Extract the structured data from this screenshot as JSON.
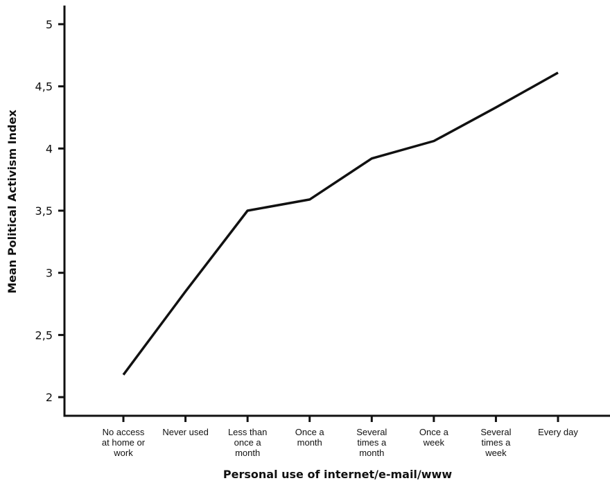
{
  "chart_data": {
    "type": "line",
    "title": "",
    "xlabel": "Personal use of internet/e-mail/www",
    "ylabel": "Mean Political Activism Index",
    "ylim": [
      1.85,
      5.15
    ],
    "yticks": [
      {
        "value": 2,
        "label": "2"
      },
      {
        "value": 2.5,
        "label": "2,5"
      },
      {
        "value": 3,
        "label": "3"
      },
      {
        "value": 3.5,
        "label": "3,5"
      },
      {
        "value": 4,
        "label": "4"
      },
      {
        "value": 4.5,
        "label": "4,5"
      },
      {
        "value": 5,
        "label": "5"
      }
    ],
    "categories": [
      [
        "No access",
        "at home or",
        "work"
      ],
      [
        "Never used"
      ],
      [
        "Less than",
        "once a",
        "month"
      ],
      [
        "Once a",
        "month"
      ],
      [
        "Several",
        "times a",
        "month"
      ],
      [
        "Once a",
        "week"
      ],
      [
        "Several",
        "times a",
        "week"
      ],
      [
        "Every day"
      ]
    ],
    "series": [
      {
        "values": [
          2.18,
          2.85,
          3.5,
          3.59,
          3.92,
          4.06,
          4.33,
          4.61
        ]
      }
    ],
    "grid": false,
    "line_color": "#111111"
  }
}
